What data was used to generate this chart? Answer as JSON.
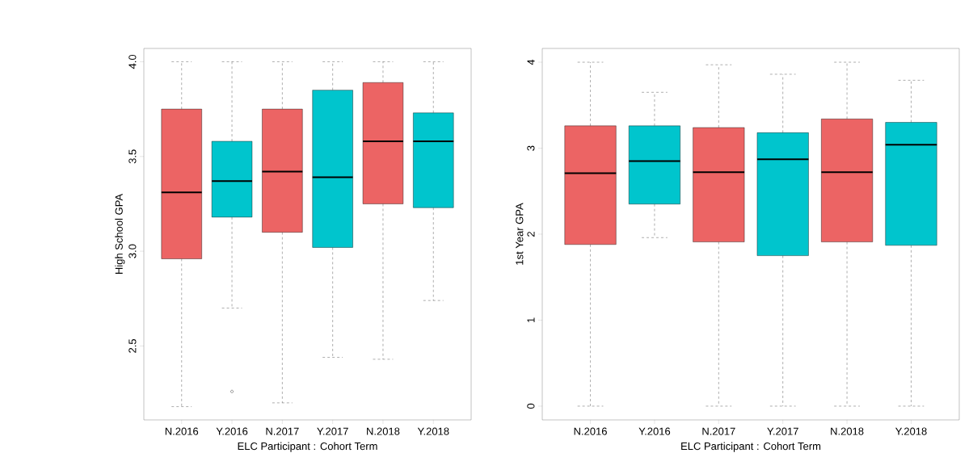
{
  "chart_data": [
    {
      "type": "box",
      "categories": [
        "N.2016",
        "Y.2016",
        "N.2017",
        "Y.2017",
        "N.2018",
        "Y.2018"
      ],
      "boxes": [
        {
          "low": 2.18,
          "q1": 2.96,
          "median": 3.31,
          "q3": 3.75,
          "high": 4.0
        },
        {
          "low": 2.7,
          "q1": 3.18,
          "median": 3.37,
          "q3": 3.58,
          "high": 4.0,
          "outliers": [
            2.26
          ]
        },
        {
          "low": 2.2,
          "q1": 3.1,
          "median": 3.42,
          "q3": 3.75,
          "high": 4.0
        },
        {
          "low": 2.44,
          "q1": 3.02,
          "median": 3.39,
          "q3": 3.85,
          "high": 4.0
        },
        {
          "low": 2.43,
          "q1": 3.25,
          "median": 3.58,
          "q3": 3.89,
          "high": 4.0
        },
        {
          "low": 2.74,
          "q1": 3.23,
          "median": 3.58,
          "q3": 3.73,
          "high": 4.0
        }
      ],
      "colors": [
        "#ec6464",
        "#00c5cd",
        "#ec6464",
        "#00c5cd",
        "#ec6464",
        "#00c5cd"
      ],
      "xlabel": "ELC Participant : Cohort Term",
      "ylabel": "High School GPA",
      "ylim": [
        2.11,
        4.07
      ],
      "yticks": [
        {
          "value": 2.5,
          "label": "2.5"
        },
        {
          "value": 3,
          "label": "3.0"
        },
        {
          "value": 3.5,
          "label": "3.5"
        },
        {
          "value": 4,
          "label": "4.0"
        }
      ]
    },
    {
      "type": "box",
      "categories": [
        "N.2016",
        "Y.2016",
        "N.2017",
        "Y.2017",
        "N.2018",
        "Y.2018"
      ],
      "boxes": [
        {
          "low": 0,
          "q1": 1.88,
          "median": 2.71,
          "q3": 3.26,
          "high": 4.0
        },
        {
          "low": 1.96,
          "q1": 2.35,
          "median": 2.85,
          "q3": 3.26,
          "high": 3.65
        },
        {
          "low": 0,
          "q1": 1.91,
          "median": 2.72,
          "q3": 3.24,
          "high": 3.97
        },
        {
          "low": 0,
          "q1": 1.75,
          "median": 2.87,
          "q3": 3.18,
          "high": 3.86
        },
        {
          "low": 0,
          "q1": 1.91,
          "median": 2.72,
          "q3": 3.34,
          "high": 4.0
        },
        {
          "low": 0,
          "q1": 1.87,
          "median": 3.04,
          "q3": 3.3,
          "high": 3.79
        }
      ],
      "colors": [
        "#ec6464",
        "#00c5cd",
        "#ec6464",
        "#00c5cd",
        "#ec6464",
        "#00c5cd"
      ],
      "xlabel": "ELC Participant : Cohort Term",
      "ylabel": "1st Year GPA",
      "ylim": [
        -0.16,
        4.16
      ],
      "yticks": [
        0,
        1,
        2,
        3,
        4
      ]
    }
  ]
}
